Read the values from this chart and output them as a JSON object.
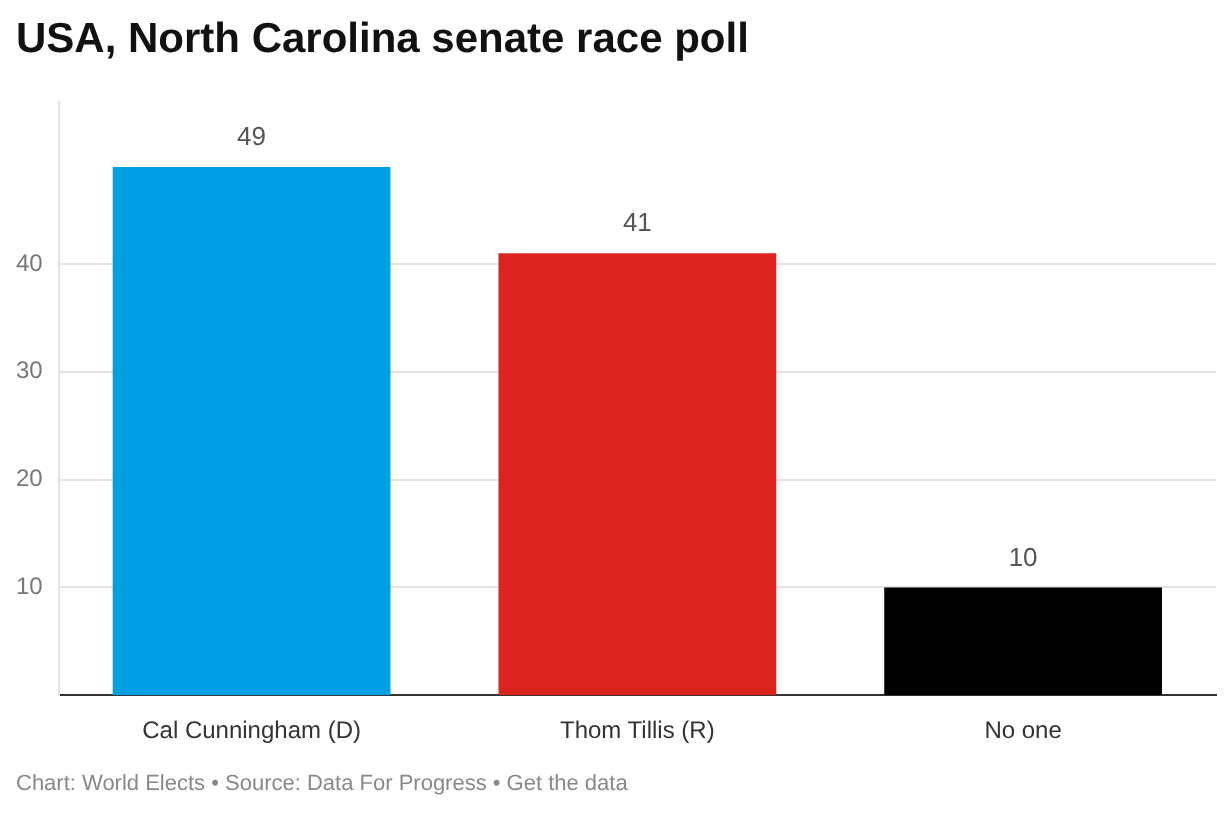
{
  "chart_data": {
    "type": "bar",
    "title": "USA, North Carolina senate race poll",
    "categories": [
      "Cal Cunningham (D)",
      "Thom Tillis (R)",
      "No one"
    ],
    "values": [
      49,
      41,
      10
    ],
    "colors": [
      "#009fe3",
      "#dc241f",
      "#000000"
    ],
    "ylim": [
      0,
      55
    ],
    "yticks": [
      10,
      20,
      30,
      40
    ],
    "grid": "y",
    "data_labels": true,
    "legend": false,
    "annotations": [
      "Chart: World Elects • Source: Data For Progress • Get the data"
    ]
  }
}
